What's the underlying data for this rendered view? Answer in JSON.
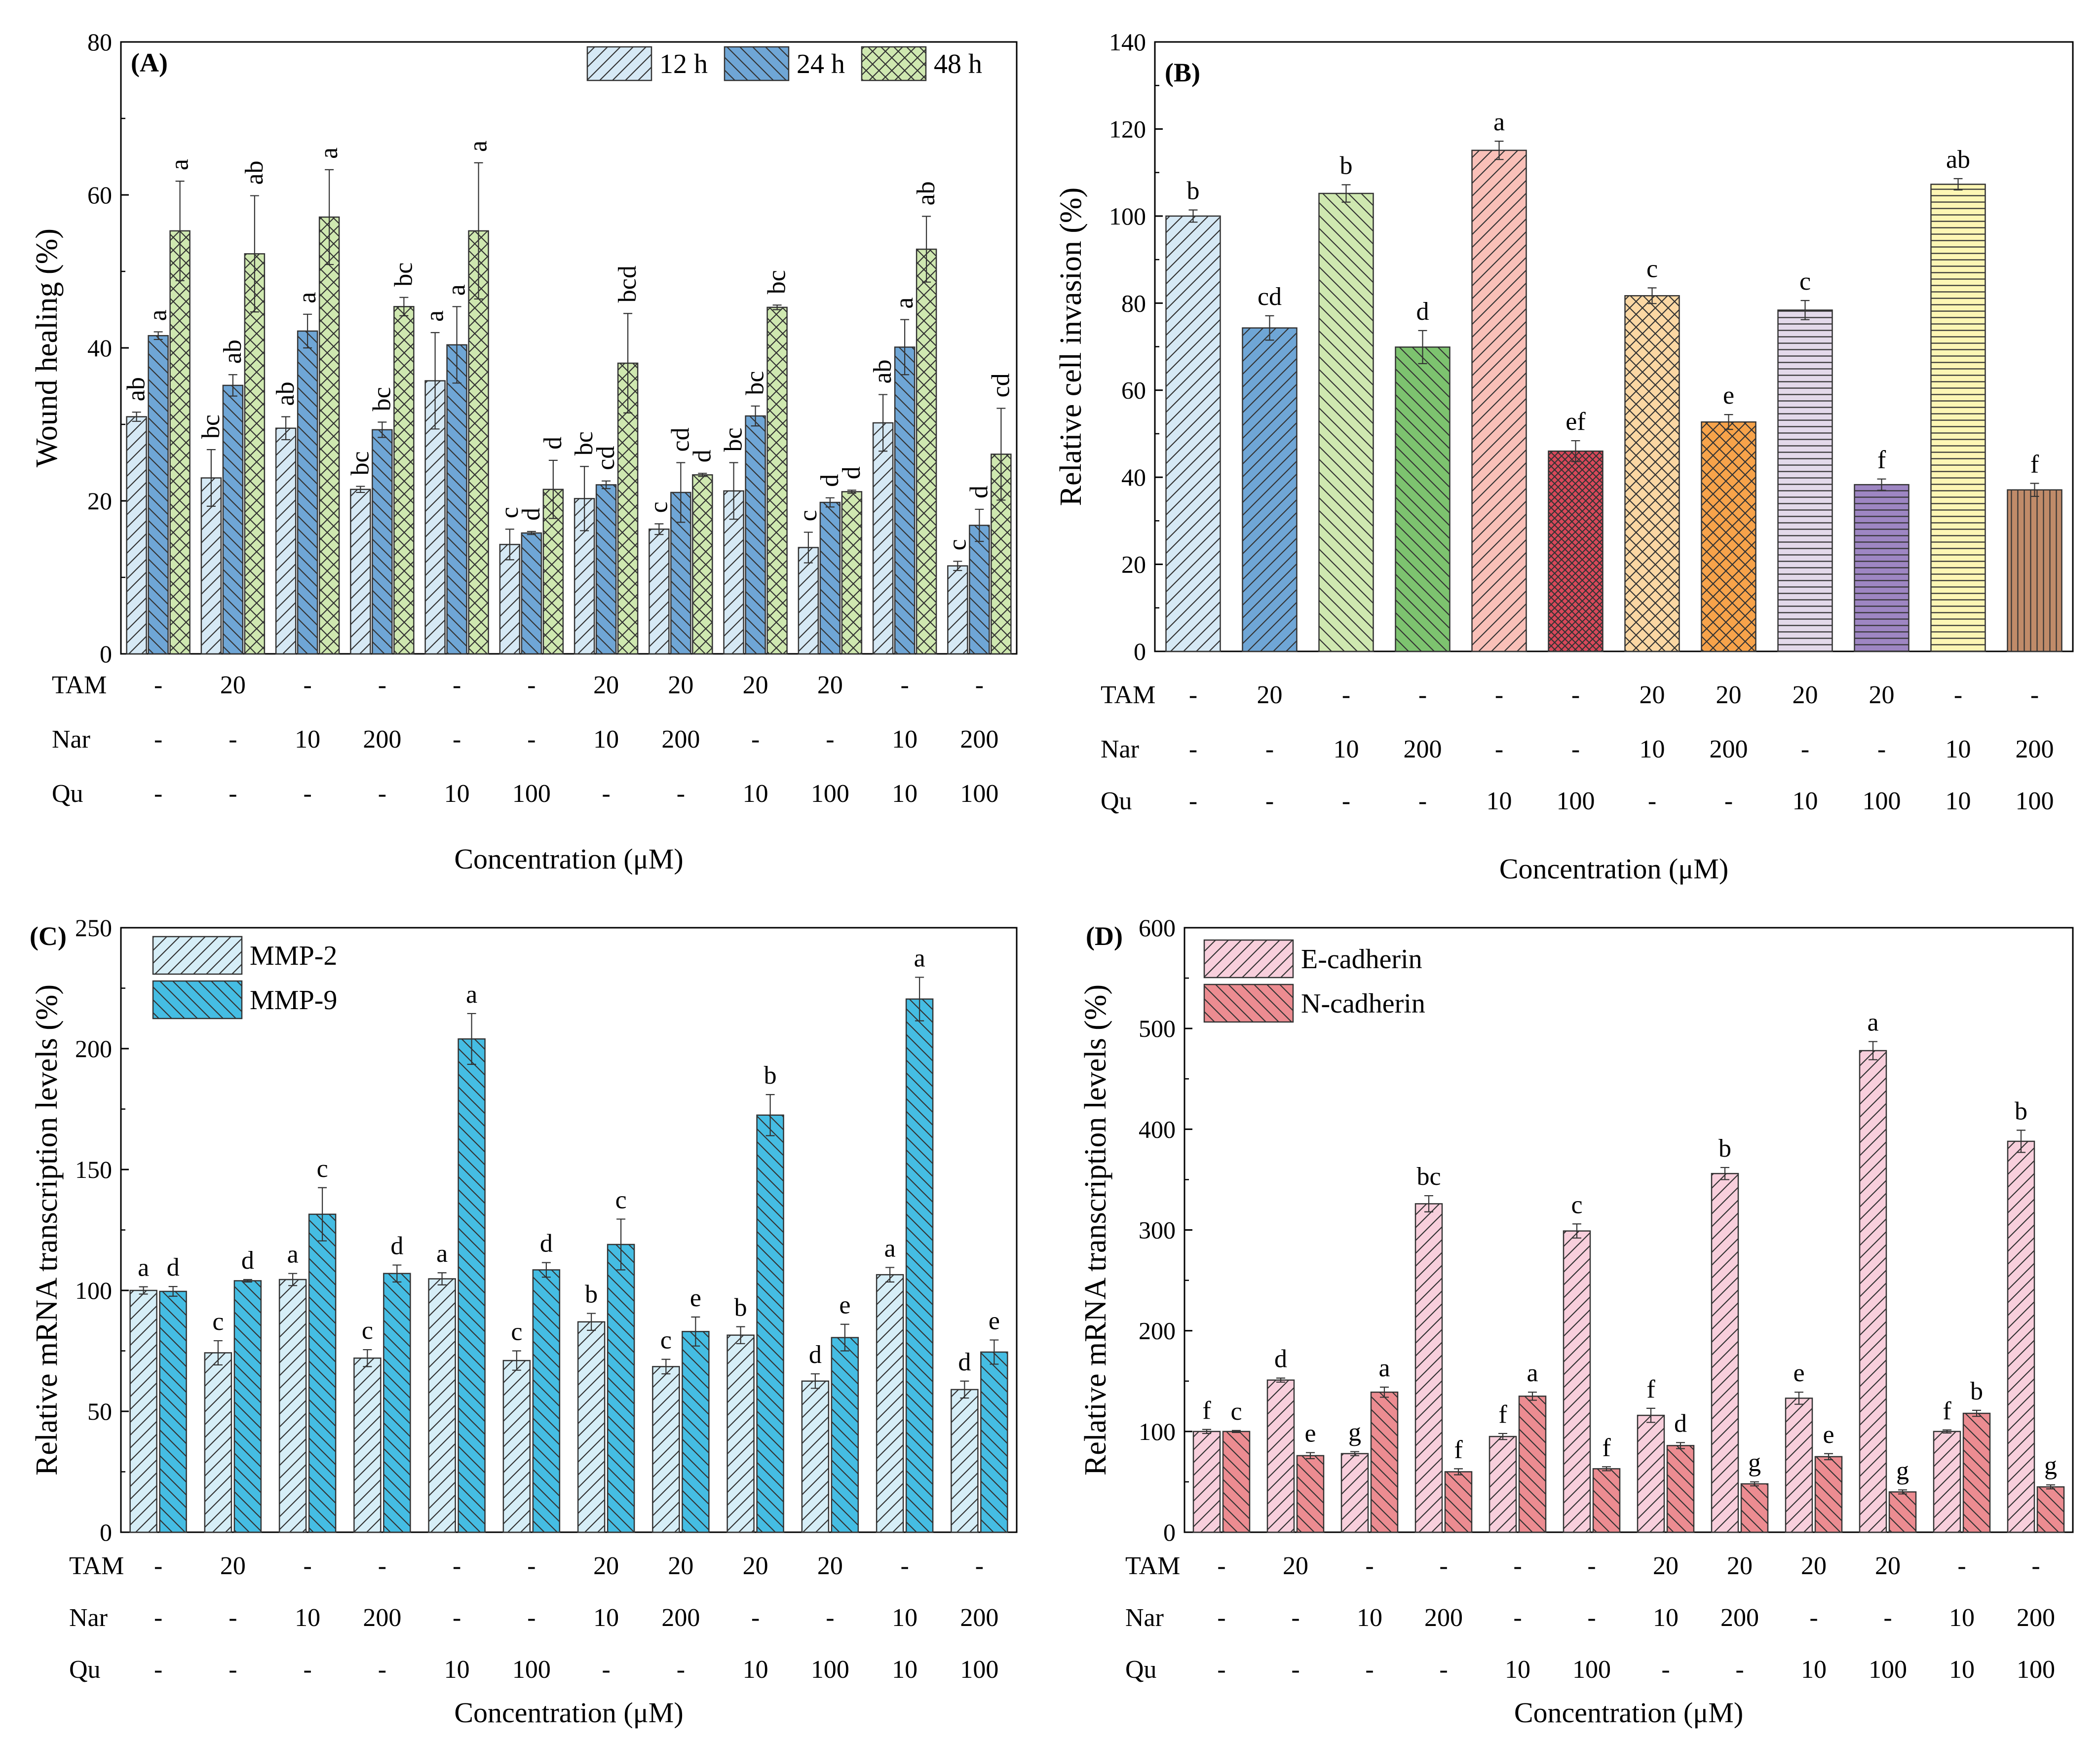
{
  "chart_data": [
    {
      "id": "A",
      "type": "bar",
      "panel_label": "(A)",
      "ylabel": "Wound healing (%)",
      "xlabel": "Concentration (μM)",
      "ylim": [
        0,
        80
      ],
      "yticks": [
        0,
        20,
        40,
        60,
        80
      ],
      "legend_position": "top-right",
      "conditions": {
        "labels": [
          "TAM",
          "Nar",
          "Qu"
        ],
        "TAM": [
          "-",
          "20",
          "-",
          "-",
          "-",
          "-",
          "20",
          "20",
          "20",
          "20",
          "-",
          "-"
        ],
        "Nar": [
          "-",
          "-",
          "10",
          "200",
          "-",
          "-",
          "10",
          "200",
          "-",
          "-",
          "10",
          "200"
        ],
        "Qu": [
          "-",
          "-",
          "-",
          "-",
          "10",
          "100",
          "-",
          "-",
          "10",
          "100",
          "10",
          "100"
        ]
      },
      "series": [
        {
          "name": "12 h",
          "fill": "#d6e9f5",
          "pattern": "diag-right",
          "values": [
            31,
            23,
            29.5,
            21.5,
            35.7,
            14.3,
            20.3,
            16.3,
            21.3,
            13.9,
            30.2,
            11.5
          ],
          "errors": [
            0.6,
            3.7,
            1.5,
            0.4,
            6.3,
            2.0,
            4.2,
            0.7,
            3.7,
            2.0,
            3.7,
            0.6
          ],
          "letters": [
            "ab",
            "bc",
            "ab",
            "bc",
            "a",
            "c",
            "bc",
            "c",
            "bc",
            "c",
            "ab",
            "c"
          ]
        },
        {
          "name": "24 h",
          "fill": "#6fa6d6",
          "pattern": "diag-left",
          "values": [
            41.6,
            35.1,
            42.2,
            29.3,
            40.4,
            15.8,
            22.1,
            21.1,
            31.1,
            19.8,
            40.1,
            16.8
          ],
          "errors": [
            0.5,
            1.4,
            2.2,
            1.0,
            5.0,
            0.2,
            0.5,
            3.9,
            1.3,
            0.6,
            3.6,
            2.1
          ],
          "letters": [
            "a",
            "ab",
            "a",
            "bc",
            "a",
            "d",
            "cd",
            "cd",
            "bc",
            "d",
            "a",
            "d"
          ]
        },
        {
          "name": "48 h",
          "fill": "#cfe8b0",
          "pattern": "cross",
          "values": [
            55.3,
            52.3,
            57.1,
            45.4,
            55.3,
            21.5,
            38.0,
            23.4,
            45.3,
            21.2,
            52.9,
            26.1
          ],
          "errors": [
            6.5,
            7.6,
            6.2,
            1.2,
            8.9,
            3.8,
            6.5,
            0.2,
            0.3,
            0.2,
            4.3,
            6.0
          ],
          "letters": [
            "a",
            "ab",
            "a",
            "bc",
            "a",
            "d",
            "bcd",
            "d",
            "bc",
            "d",
            "ab",
            "cd"
          ]
        }
      ]
    },
    {
      "id": "B",
      "type": "bar",
      "panel_label": "(B)",
      "ylabel": "Relative cell invasion (%)",
      "xlabel": "Concentration (μM)",
      "ylim": [
        0,
        140
      ],
      "yticks": [
        0,
        20,
        40,
        60,
        80,
        100,
        120,
        140
      ],
      "conditions": {
        "labels": [
          "TAM",
          "Nar",
          "Qu"
        ],
        "TAM": [
          "-",
          "20",
          "-",
          "-",
          "-",
          "-",
          "20",
          "20",
          "20",
          "20",
          "-",
          "-"
        ],
        "Nar": [
          "-",
          "-",
          "10",
          "200",
          "-",
          "-",
          "10",
          "200",
          "-",
          "-",
          "10",
          "200"
        ],
        "Qu": [
          "-",
          "-",
          "-",
          "-",
          "10",
          "100",
          "-",
          "-",
          "10",
          "100",
          "10",
          "100"
        ]
      },
      "values": [
        100,
        74.3,
        105.2,
        69.9,
        115.1,
        46.0,
        81.7,
        52.7,
        78.4,
        38.3,
        107.3,
        37.1
      ],
      "errors": [
        1.4,
        2.8,
        2.0,
        3.8,
        2.1,
        2.4,
        1.8,
        1.7,
        2.2,
        1.3,
        1.3,
        1.5
      ],
      "letters": [
        "b",
        "cd",
        "b",
        "d",
        "a",
        "ef",
        "c",
        "e",
        "c",
        "f",
        "ab",
        "f"
      ],
      "fills": [
        "#d6e9f5",
        "#6fa6d6",
        "#cfe8b0",
        "#7dc36f",
        "#f9c0b8",
        "#d9485a",
        "#fbd7a3",
        "#f7a34a",
        "#e3d9ea",
        "#9e86c3",
        "#fdf6b4",
        "#c08b69"
      ],
      "patterns": [
        "diag-right",
        "diag-right",
        "diag-left",
        "diag-left",
        "diag-right",
        "cross-tight",
        "cross",
        "cross",
        "horiz",
        "horiz",
        "horiz",
        "vert"
      ]
    },
    {
      "id": "C",
      "type": "bar",
      "panel_label": "(C)",
      "ylabel": "Relative mRNA transcription levels (%)",
      "xlabel": "Concentration (μM)",
      "ylim": [
        0,
        250
      ],
      "yticks": [
        0,
        50,
        100,
        150,
        200,
        250
      ],
      "legend_position": "top-left",
      "conditions": {
        "labels": [
          "TAM",
          "Nar",
          "Qu"
        ],
        "TAM": [
          "-",
          "20",
          "-",
          "-",
          "-",
          "-",
          "20",
          "20",
          "20",
          "20",
          "-",
          "-"
        ],
        "Nar": [
          "-",
          "-",
          "10",
          "200",
          "-",
          "-",
          "10",
          "200",
          "-",
          "-",
          "10",
          "200"
        ],
        "Qu": [
          "-",
          "-",
          "-",
          "-",
          "10",
          "100",
          "-",
          "-",
          "10",
          "100",
          "10",
          "100"
        ]
      },
      "series": [
        {
          "name": "MMP-2",
          "fill": "#d6eef7",
          "pattern": "diag-right",
          "values": [
            100,
            74.2,
            104.5,
            72.0,
            104.8,
            71.0,
            87.0,
            68.5,
            81.5,
            62.5,
            106.5,
            59.0
          ],
          "errors": [
            1.5,
            5.0,
            2.5,
            3.5,
            2.5,
            4.0,
            3.5,
            3.0,
            3.5,
            3.0,
            3.0,
            3.5
          ],
          "letters": [
            "a",
            "c",
            "a",
            "c",
            "a",
            "c",
            "b",
            "c",
            "b",
            "d",
            "a",
            "d"
          ]
        },
        {
          "name": "MMP-9",
          "fill": "#45bde3",
          "pattern": "diag-left",
          "values": [
            99.6,
            104.0,
            131.5,
            107.0,
            204.0,
            108.5,
            119.0,
            83.0,
            172.5,
            80.5,
            220.5,
            74.5
          ],
          "errors": [
            2.0,
            0.5,
            11.0,
            3.5,
            10.5,
            3.0,
            10.5,
            6.0,
            8.5,
            5.5,
            9.0,
            5.0
          ],
          "letters": [
            "d",
            "d",
            "c",
            "d",
            "a",
            "d",
            "c",
            "e",
            "b",
            "e",
            "a",
            "e"
          ]
        }
      ]
    },
    {
      "id": "D",
      "type": "bar",
      "panel_label": "(D)",
      "ylabel": "Relative mRNA transcription levels (%)",
      "xlabel": "Concentration  (μM)",
      "ylim": [
        0,
        600
      ],
      "yticks": [
        0,
        100,
        200,
        300,
        400,
        500,
        600
      ],
      "legend_position": "top-left",
      "conditions": {
        "labels": [
          "TAM",
          "Nar",
          "Qu"
        ],
        "TAM": [
          "-",
          "20",
          "-",
          "-",
          "-",
          "-",
          "20",
          "20",
          "20",
          "20",
          "-",
          "-"
        ],
        "Nar": [
          "-",
          "-",
          "10",
          "200",
          "-",
          "-",
          "10",
          "200",
          "-",
          "-",
          "10",
          "200"
        ],
        "Qu": [
          "-",
          "-",
          "-",
          "-",
          "10",
          "100",
          "-",
          "-",
          "10",
          "100",
          "10",
          "100"
        ]
      },
      "series": [
        {
          "name": "E-cadherin",
          "fill": "#f8cfdc",
          "pattern": "diag-right",
          "values": [
            100,
            151,
            78,
            326,
            95,
            299,
            116,
            356,
            133,
            478,
            100,
            388
          ],
          "errors": [
            2,
            2,
            2,
            8,
            3,
            7,
            7,
            6,
            6,
            9,
            1.5,
            11
          ],
          "letters": [
            "f",
            "d",
            "g",
            "bc",
            "f",
            "c",
            "f",
            "b",
            "e",
            "a",
            "f",
            "b"
          ]
        },
        {
          "name": "N-cadherin",
          "fill": "#ec8c91",
          "pattern": "diag-left",
          "values": [
            100,
            76,
            139,
            60,
            135,
            63,
            86,
            48,
            75,
            40,
            118,
            45
          ],
          "errors": [
            1,
            3,
            5,
            3,
            4,
            2,
            3,
            2,
            3,
            2,
            3,
            2
          ],
          "letters": [
            "c",
            "e",
            "a",
            "f",
            "a",
            "f",
            "d",
            "g",
            "e",
            "g",
            "b",
            "g"
          ]
        }
      ]
    }
  ]
}
